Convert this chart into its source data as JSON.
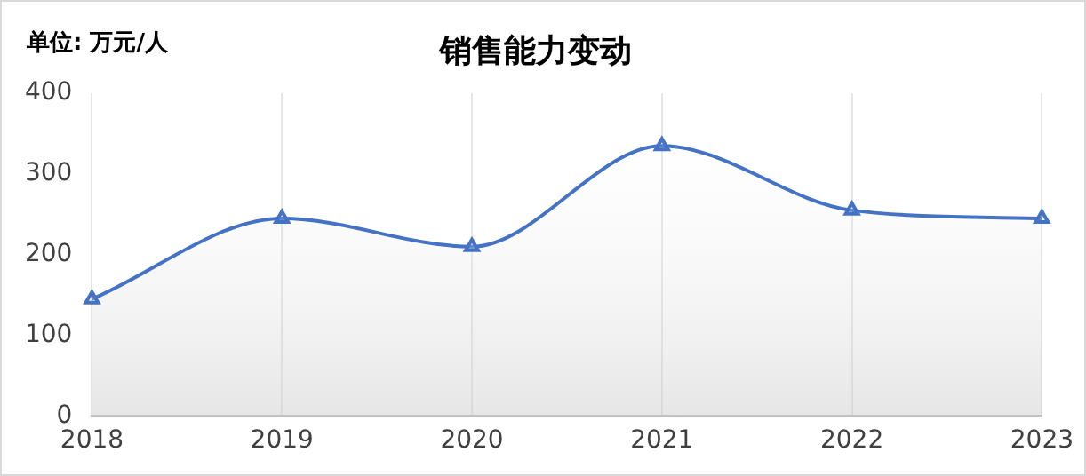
{
  "chart_data": {
    "type": "area",
    "title": "销售能力变动",
    "annotations": [
      "单位: 万元/人"
    ],
    "categories": [
      "2018",
      "2019",
      "2020",
      "2021",
      "2022",
      "2023"
    ],
    "series": [
      {
        "color": "#4472c4",
        "values": [
          145,
          245,
          210,
          335,
          255,
          245
        ]
      }
    ],
    "ylim": [
      0,
      400
    ],
    "yticks": [
      0,
      100,
      200,
      300,
      400
    ],
    "grid": "x",
    "legend": false,
    "marker": "triangle",
    "line_style": "solid"
  }
}
